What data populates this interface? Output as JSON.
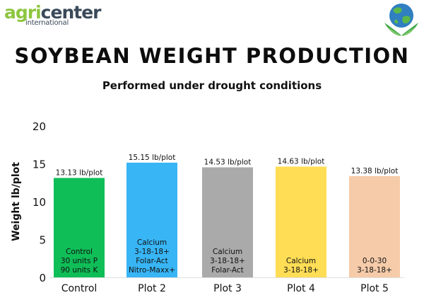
{
  "logo": {
    "brand_a": "agri",
    "brand_b": "center",
    "sub": "international",
    "brand_color": "#8dc63f",
    "dark_color": "#3a4a5a"
  },
  "header": {
    "title": "SOYBEAN WEIGHT PRODUCTION",
    "subtitle": "Performed under drought conditions"
  },
  "chart_data": {
    "type": "bar",
    "ylabel": "Weight lb/plot",
    "ylim": [
      0,
      20
    ],
    "yticks": [
      0,
      5,
      10,
      15,
      20
    ],
    "categories": [
      "Control",
      "Plot 2",
      "Plot 3",
      "Plot 4",
      "Plot 5"
    ],
    "values": [
      13.13,
      15.15,
      14.53,
      14.63,
      13.38
    ],
    "value_labels": [
      "13.13 lb/plot",
      "15.15 lb/plot",
      "14.53 lb/plot",
      "14.63 lb/plot",
      "13.38 lb/plot"
    ],
    "treatments": [
      [
        "Control",
        "30 units P",
        "90 units K"
      ],
      [
        "Calcium",
        "3-18-18+",
        "Folar-Act",
        "Nitro-Maxx+"
      ],
      [
        "Calcium",
        "3-18-18+",
        "Folar-Act"
      ],
      [
        "Calcium",
        "3-18-18+"
      ],
      [
        "0-0-30",
        "3-18-18+"
      ]
    ],
    "colors": [
      "#0fbe57",
      "#38b5f5",
      "#aaaaaa",
      "#ffdd55",
      "#f6cba9"
    ],
    "grid": false,
    "legend": "none"
  }
}
